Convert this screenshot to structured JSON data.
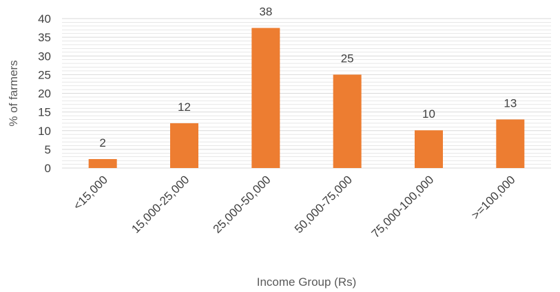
{
  "chart_data": {
    "type": "bar",
    "categories": [
      "<15,000",
      "15,000-25,000",
      "25,000-50,000",
      "50,000-75,000",
      "75,000-100,000",
      ">=100,000"
    ],
    "values": [
      2.4,
      12,
      37.5,
      25,
      10.1,
      13
    ],
    "data_labels": [
      "2",
      "12",
      "38",
      "25",
      "10",
      "13"
    ],
    "title": "",
    "xlabel": "Income Group (Rs)",
    "ylabel": "% of farmers",
    "ylim": [
      0,
      40
    ],
    "yticks": [
      "0",
      "5",
      "10",
      "15",
      "20",
      "25",
      "30",
      "35",
      "40"
    ],
    "grid": true,
    "legend": "none",
    "bar_color": "#ED7D31",
    "grid_color": "#D9D9D9"
  }
}
